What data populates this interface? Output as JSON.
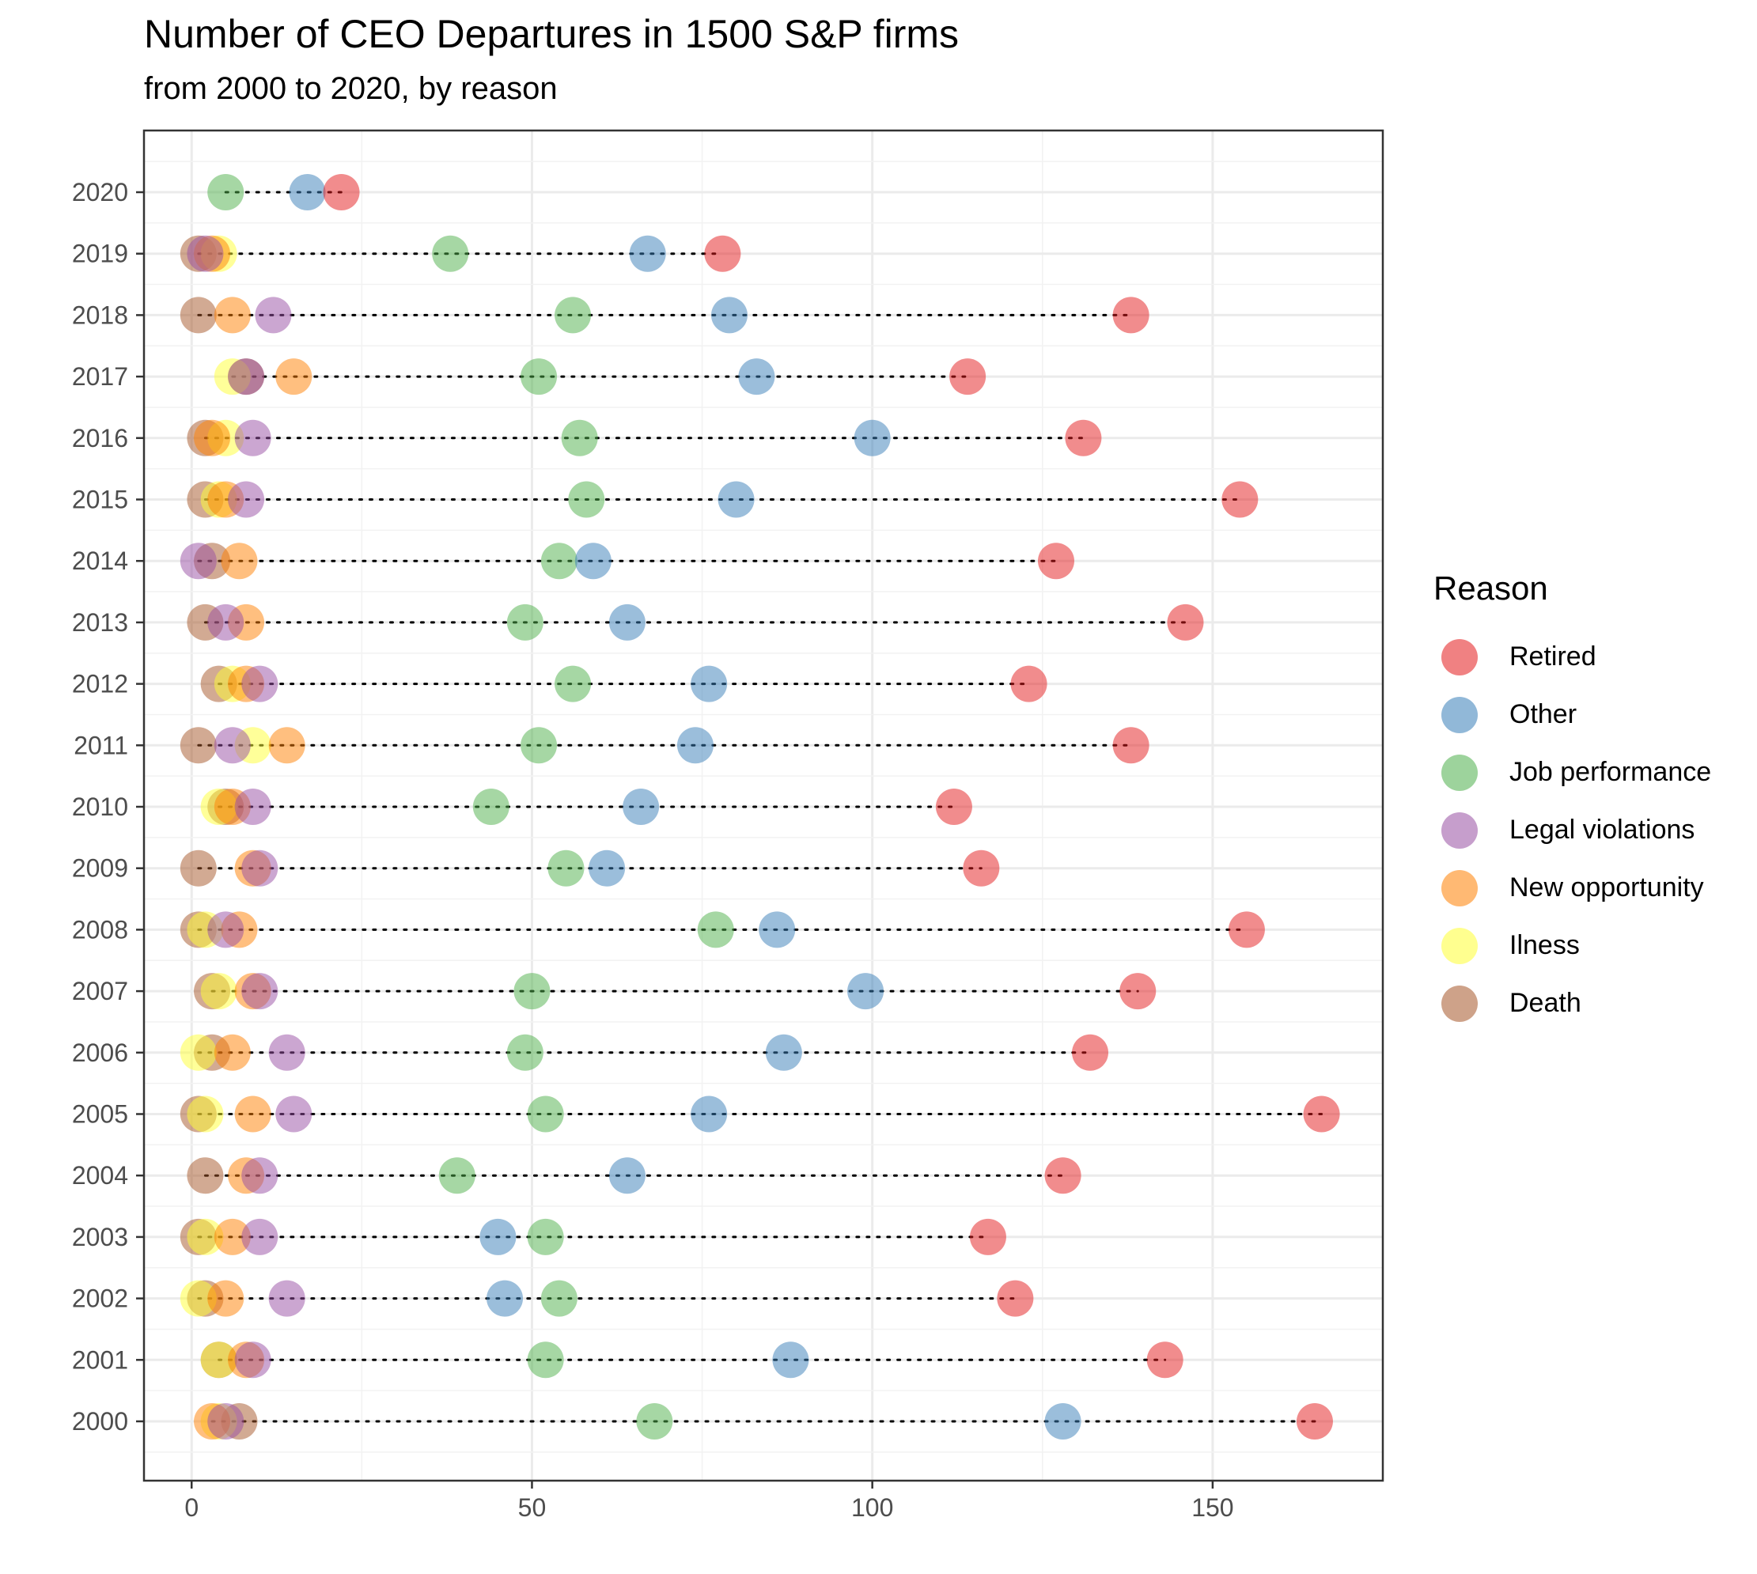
{
  "title": "Number of CEO Departures in 1500 S&P firms",
  "subtitle": "from 2000 to 2020, by reason",
  "legend": {
    "title": "Reason",
    "items": [
      {
        "label": "Retired",
        "color": "#E41A1C"
      },
      {
        "label": "Other",
        "color": "#377EB8"
      },
      {
        "label": "Job performance",
        "color": "#4DAF4A"
      },
      {
        "label": "Legal violations",
        "color": "#984EA3"
      },
      {
        "label": "New opportunity",
        "color": "#FF7F00"
      },
      {
        "label": "Ilness",
        "color": "#FFFF33"
      },
      {
        "label": "Death",
        "color": "#A65628"
      }
    ]
  },
  "chart_data": {
    "type": "scatter",
    "title": "Number of CEO Departures in 1500 S&P firms",
    "subtitle": "from 2000 to 2020, by reason",
    "xlabel": "",
    "ylabel": "",
    "xlim": [
      -7,
      175
    ],
    "x_ticks": [
      0,
      50,
      100,
      150
    ],
    "categories": [
      "2020",
      "2019",
      "2018",
      "2017",
      "2016",
      "2015",
      "2014",
      "2013",
      "2012",
      "2011",
      "2010",
      "2009",
      "2008",
      "2007",
      "2006",
      "2005",
      "2004",
      "2003",
      "2002",
      "2001",
      "2000"
    ],
    "grid": true,
    "legend_position": "right",
    "series": [
      {
        "name": "Retired",
        "color": "#E41A1C",
        "values": [
          22,
          78,
          138,
          114,
          131,
          154,
          127,
          146,
          123,
          138,
          112,
          116,
          155,
          139,
          132,
          166,
          128,
          117,
          121,
          143,
          165
        ]
      },
      {
        "name": "Other",
        "color": "#377EB8",
        "values": [
          17,
          67,
          79,
          83,
          100,
          80,
          59,
          64,
          76,
          74,
          66,
          61,
          86,
          99,
          87,
          76,
          64,
          45,
          46,
          88,
          128
        ]
      },
      {
        "name": "Job performance",
        "color": "#4DAF4A",
        "values": [
          5,
          38,
          56,
          51,
          57,
          58,
          54,
          49,
          56,
          51,
          44,
          55,
          77,
          50,
          49,
          52,
          39,
          52,
          54,
          52,
          68
        ]
      },
      {
        "name": "Legal violations",
        "color": "#984EA3",
        "values": [
          null,
          2,
          12,
          8,
          9,
          8,
          1,
          5,
          10,
          6,
          9,
          10,
          5,
          10,
          14,
          15,
          10,
          10,
          14,
          9,
          5
        ]
      },
      {
        "name": "New opportunity",
        "color": "#FF7F00",
        "values": [
          null,
          3,
          6,
          15,
          3,
          5,
          7,
          8,
          8,
          14,
          6,
          9,
          7,
          9,
          6,
          9,
          8,
          6,
          5,
          8,
          3
        ]
      },
      {
        "name": "Ilness",
        "color": "#FFFF33",
        "values": [
          null,
          4,
          null,
          6,
          5,
          4,
          null,
          null,
          6,
          9,
          4,
          null,
          2,
          4,
          1,
          2,
          null,
          2,
          1,
          4,
          4
        ]
      },
      {
        "name": "Death",
        "color": "#A65628",
        "values": [
          null,
          1,
          1,
          8,
          2,
          2,
          3,
          2,
          4,
          1,
          5,
          1,
          1,
          3,
          3,
          1,
          2,
          1,
          2,
          4,
          7
        ]
      }
    ]
  }
}
